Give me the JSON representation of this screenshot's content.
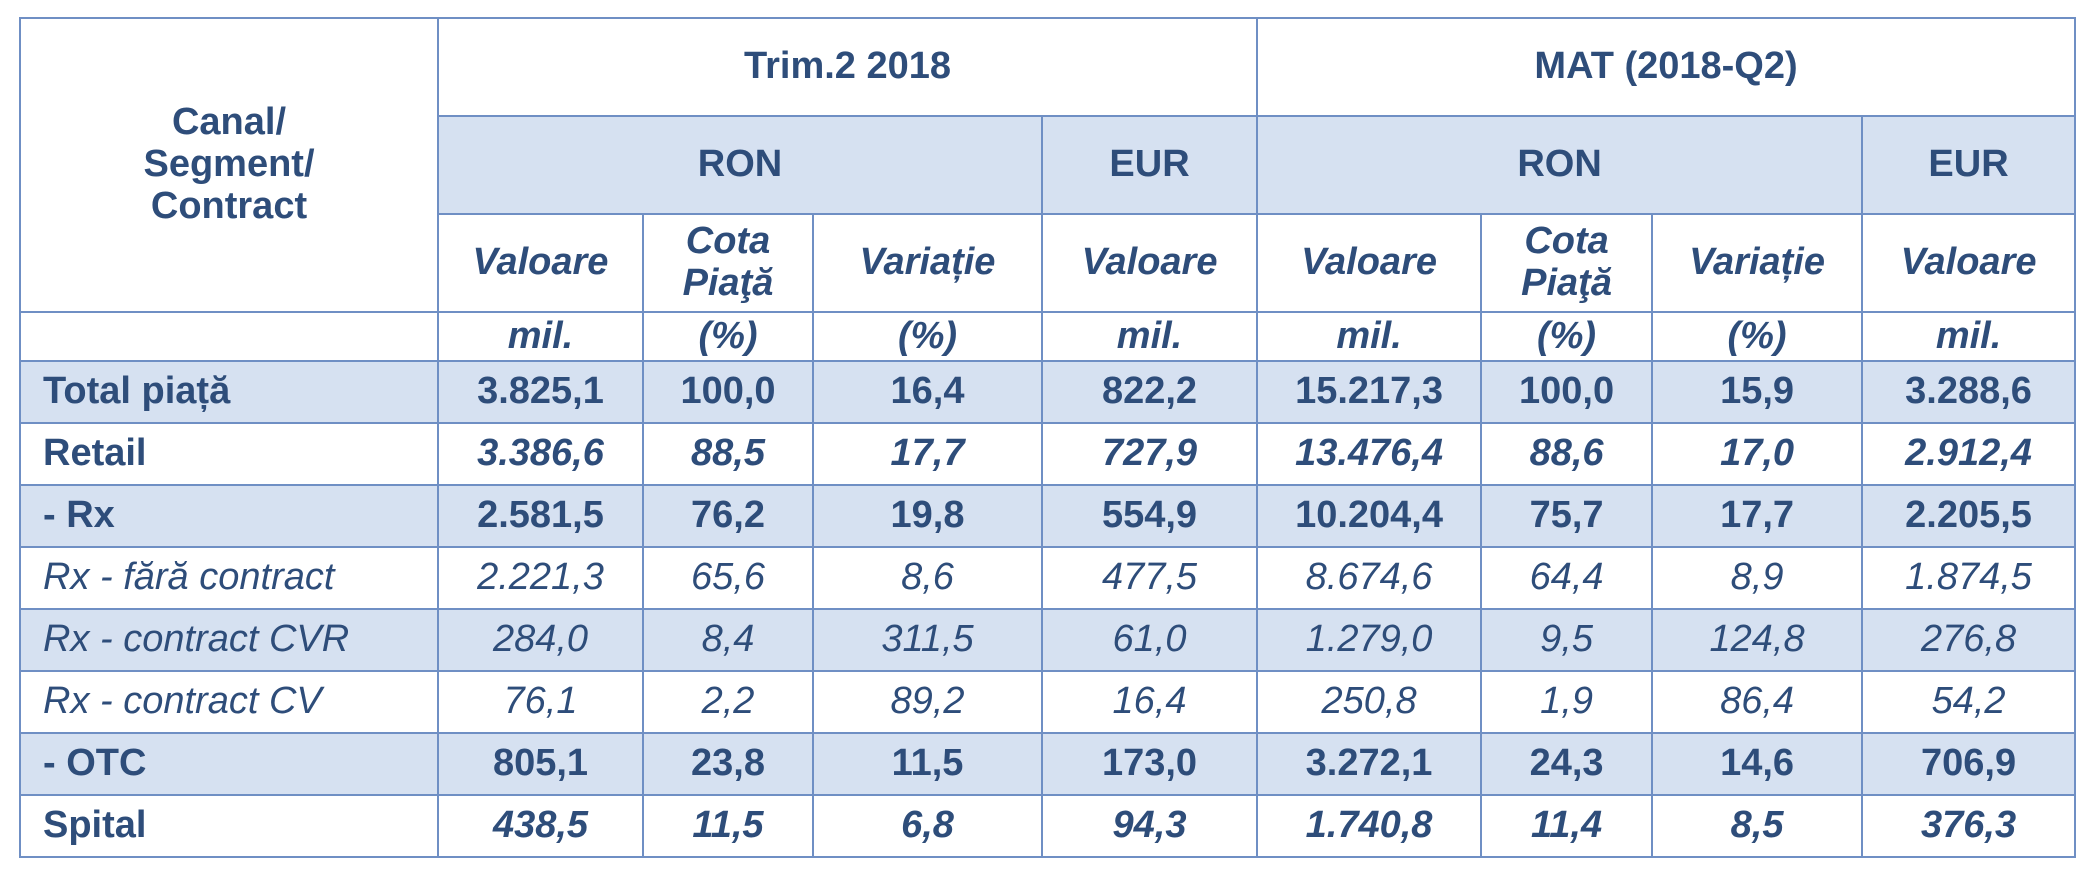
{
  "header": {
    "corner": [
      "Canal/",
      "Segment/",
      "Contract"
    ],
    "periods": [
      "Trim.2 2018",
      "MAT (2018-Q2)"
    ],
    "currencies": [
      "RON",
      "EUR",
      "RON",
      "EUR"
    ],
    "measures": [
      "Valoare",
      "Cota Piaţă",
      "Variație",
      "Valoare",
      "Valoare",
      "Cota Piaţă",
      "Variație",
      "Valoare"
    ],
    "units": [
      "mil.",
      "(%)",
      "(%)",
      "mil.",
      "mil.",
      "(%)",
      "(%)",
      "mil."
    ]
  },
  "rows": [
    {
      "label": "Total piață",
      "values": [
        "3.825,1",
        "100,0",
        "16,4",
        "822,2",
        "15.217,3",
        "100,0",
        "15,9",
        "3.288,6"
      ]
    },
    {
      "label": "Retail",
      "values": [
        "3.386,6",
        "88,5",
        "17,7",
        "727,9",
        "13.476,4",
        "88,6",
        "17,0",
        "2.912,4"
      ]
    },
    {
      "label": "- Rx",
      "values": [
        "2.581,5",
        "76,2",
        "19,8",
        "554,9",
        "10.204,4",
        "75,7",
        "17,7",
        "2.205,5"
      ]
    },
    {
      "label": "Rx - fără contract",
      "values": [
        "2.221,3",
        "65,6",
        "8,6",
        "477,5",
        "8.674,6",
        "64,4",
        "8,9",
        "1.874,5"
      ]
    },
    {
      "label": "Rx - contract CVR",
      "values": [
        "284,0",
        "8,4",
        "311,5",
        "61,0",
        "1.279,0",
        "9,5",
        "124,8",
        "276,8"
      ]
    },
    {
      "label": "Rx - contract CV",
      "values": [
        "76,1",
        "2,2",
        "89,2",
        "16,4",
        "250,8",
        "1,9",
        "86,4",
        "54,2"
      ]
    },
    {
      "label": "- OTC",
      "values": [
        "805,1",
        "23,8",
        "11,5",
        "173,0",
        "3.272,1",
        "24,3",
        "14,6",
        "706,9"
      ]
    },
    {
      "label": "Spital",
      "values": [
        "438,5",
        "11,5",
        "6,8",
        "94,3",
        "1.740,8",
        "11,4",
        "8,5",
        "376,3"
      ]
    }
  ]
}
